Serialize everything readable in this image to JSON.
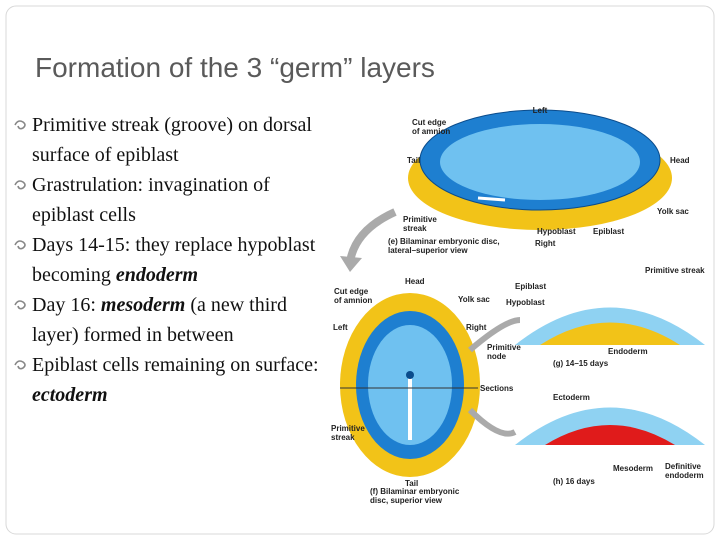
{
  "title": "Formation of the 3 “germ” layers",
  "bullets": [
    {
      "parts": [
        "Primitive streak (groove) on dorsal surface of epiblast"
      ],
      "italic": []
    },
    {
      "parts": [
        "Grastrulation:  invagination of epiblast cells"
      ],
      "italic": []
    },
    {
      "parts": [
        "Days 14-15: they replace hypoblast becoming ",
        "endoderm"
      ],
      "italic": [
        1
      ]
    },
    {
      "parts": [
        "Day 16:  ",
        "mesoderm",
        " (a new third layer) formed in between"
      ],
      "italic": [
        1
      ]
    },
    {
      "parts": [
        "Epiblast cells remaining on surface:  ",
        "ectoderm"
      ],
      "italic": [
        1
      ]
    }
  ],
  "figure": {
    "labels": [
      [
        "Left"
      ],
      [
        "Cut edge",
        "of amnion"
      ],
      [
        "Tail"
      ],
      [
        "Head"
      ],
      [
        "Yolk sac"
      ],
      [
        "Primitive",
        "streak"
      ],
      [
        "Hypoblast"
      ],
      [
        "Epiblast"
      ],
      [
        "(e) Bilaminar embryonic disc,",
        "lateral–superior view"
      ],
      [
        "Right"
      ],
      [
        "Head"
      ],
      [
        "Cut edge",
        "of amnion"
      ],
      [
        "Yolk sac"
      ],
      [
        "Hypoblast"
      ],
      [
        "Epiblast"
      ],
      [
        "Primitive streak"
      ],
      [
        "Left"
      ],
      [
        "Right"
      ],
      [
        "Primitive",
        "node"
      ],
      [
        "(g) 14–15 days"
      ],
      [
        "Endoderm"
      ],
      [
        "Sections"
      ],
      [
        "Ectoderm"
      ],
      [
        "Primitive",
        "streak"
      ],
      [
        "Tail"
      ],
      [
        "(f) Bilaminar embryonic",
        "disc, superior view"
      ],
      [
        "Mesoderm"
      ],
      [
        "Definitive",
        "endoderm"
      ],
      [
        "(h) 16 days"
      ]
    ]
  }
}
